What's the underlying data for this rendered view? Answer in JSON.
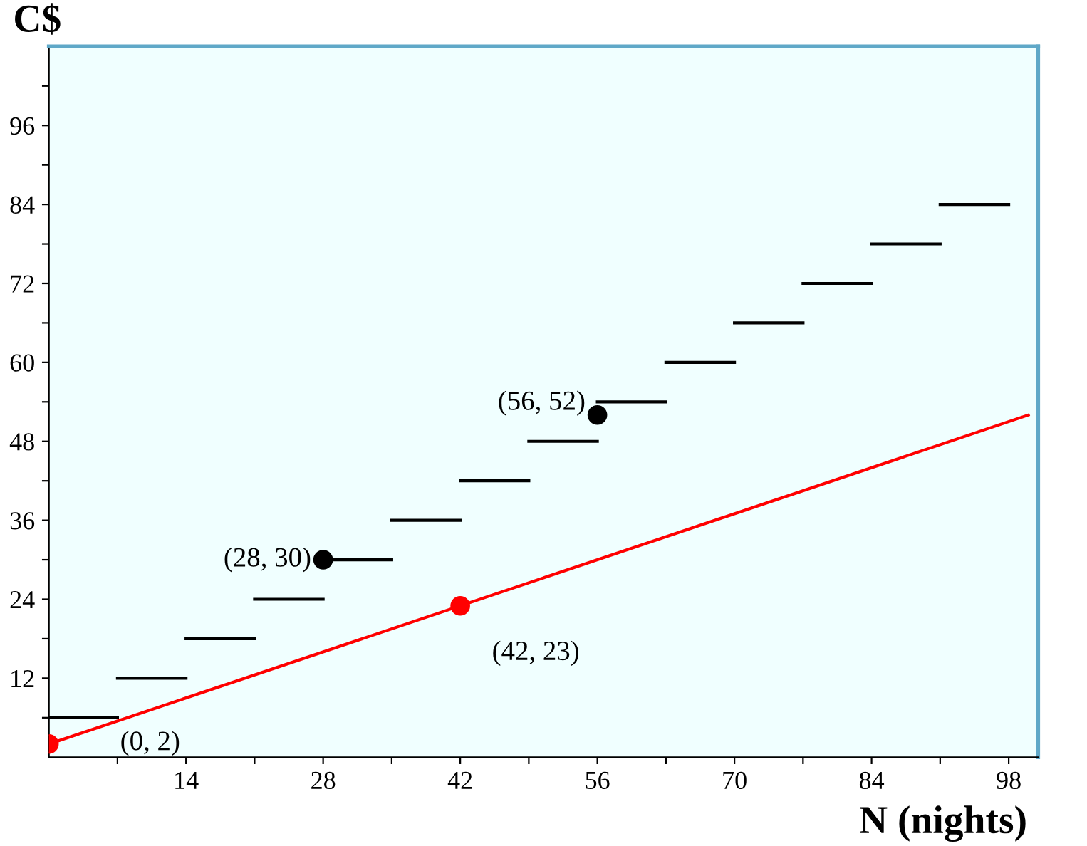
{
  "chart_data": {
    "type": "line",
    "xlabel": "N (nights)",
    "ylabel": "C$",
    "xlim": [
      0,
      101
    ],
    "ylim": [
      0,
      108
    ],
    "xticks": [
      {
        "value": 7,
        "label": null
      },
      14,
      {
        "value": 21,
        "label": null
      },
      28,
      {
        "value": 35,
        "label": null
      },
      42,
      {
        "value": 49,
        "label": null
      },
      56,
      {
        "value": 63,
        "label": null
      },
      70,
      {
        "value": 77,
        "label": null
      },
      84,
      {
        "value": 91,
        "label": null
      },
      98
    ],
    "yticks": [
      {
        "value": 6,
        "label": null
      },
      12,
      {
        "value": 18,
        "label": null
      },
      24,
      {
        "value": 30,
        "label": null
      },
      36,
      {
        "value": 42,
        "label": null
      },
      48,
      {
        "value": 54,
        "label": null
      },
      60,
      {
        "value": 66,
        "label": null
      },
      72,
      {
        "value": 78,
        "label": null
      },
      84,
      {
        "value": 90,
        "label": null
      },
      96,
      {
        "value": 102,
        "label": null
      }
    ],
    "grid": false,
    "legend": false,
    "series": [
      {
        "color": "#000000",
        "x": [
          0,
          7
        ],
        "values": [
          6,
          6
        ]
      },
      {
        "color": "#000000",
        "x": [
          7,
          14
        ],
        "values": [
          12,
          12
        ]
      },
      {
        "color": "#000000",
        "x": [
          14,
          21
        ],
        "values": [
          18,
          18
        ]
      },
      {
        "color": "#000000",
        "x": [
          21,
          28
        ],
        "values": [
          24,
          24
        ]
      },
      {
        "color": "#000000",
        "x": [
          28,
          35
        ],
        "values": [
          30,
          30
        ]
      },
      {
        "color": "#000000",
        "x": [
          35,
          42
        ],
        "values": [
          36,
          36
        ]
      },
      {
        "color": "#000000",
        "x": [
          42,
          49
        ],
        "values": [
          42,
          42
        ]
      },
      {
        "color": "#000000",
        "x": [
          49,
          56
        ],
        "values": [
          48,
          48
        ]
      },
      {
        "color": "#000000",
        "x": [
          56,
          63
        ],
        "values": [
          54,
          54
        ]
      },
      {
        "color": "#000000",
        "x": [
          63,
          70
        ],
        "values": [
          60,
          60
        ]
      },
      {
        "color": "#000000",
        "x": [
          70,
          77
        ],
        "values": [
          66,
          66
        ]
      },
      {
        "color": "#000000",
        "x": [
          77,
          84
        ],
        "values": [
          72,
          72
        ]
      },
      {
        "color": "#000000",
        "x": [
          84,
          91
        ],
        "values": [
          78,
          78
        ]
      },
      {
        "color": "#000000",
        "x": [
          91,
          98
        ],
        "values": [
          84,
          84
        ]
      },
      {
        "color": "#ff0000",
        "x": [
          0,
          100
        ],
        "values": [
          2,
          52
        ]
      },
      {
        "type": "scatter",
        "color": "#000000",
        "marker": "circle",
        "x": [
          28,
          56
        ],
        "values": [
          30,
          52
        ]
      },
      {
        "type": "scatter",
        "color": "#ff0000",
        "marker": "circle",
        "x": [
          0,
          42
        ],
        "values": [
          2,
          23
        ]
      }
    ],
    "annotations": [
      {
        "text": "(28, 30)",
        "x": 28,
        "y": 30
      },
      {
        "text": "(56, 52)",
        "x": 56,
        "y": 52
      },
      {
        "text": "(42, 23)",
        "x": 42,
        "y": 23
      },
      {
        "text": "(0, 2)",
        "x": 0,
        "y": 2
      }
    ]
  }
}
